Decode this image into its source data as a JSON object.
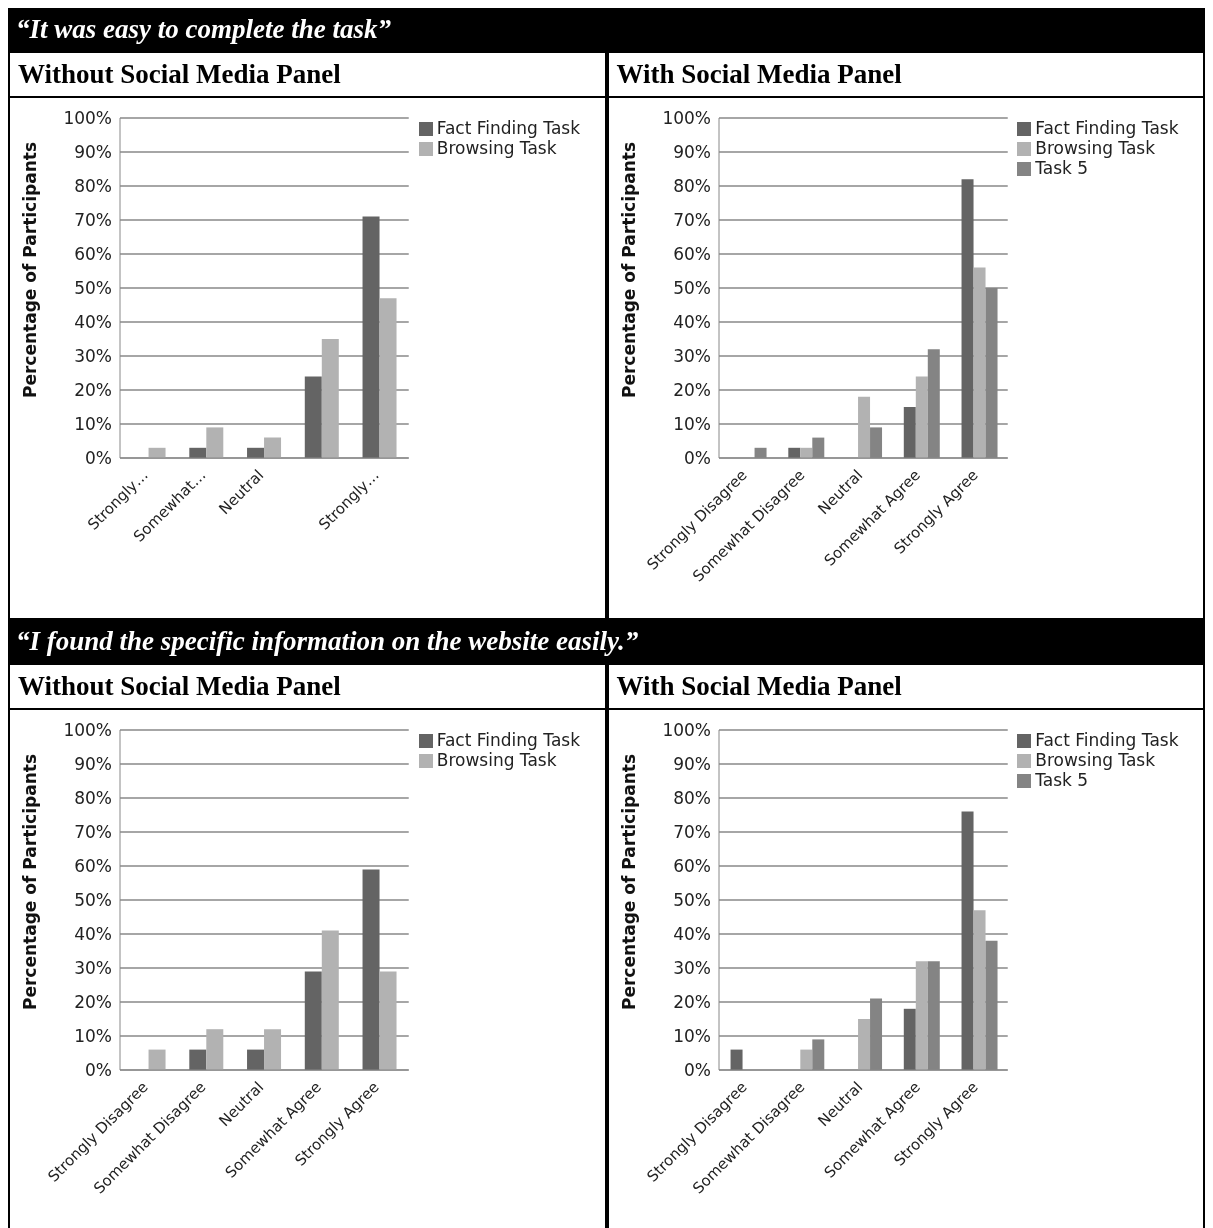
{
  "chart_data": [
    {
      "type": "bar",
      "title": "“It was easy to complete the task”",
      "subtitle": "Without Social Media Panel",
      "ylabel": "Percentage of Participants",
      "categories": [
        "Strongly…",
        "Somewhat…",
        "Neutral",
        null,
        "Strongly…"
      ],
      "series": [
        {
          "name": "Fact Finding Task",
          "color": "#646464",
          "values": [
            0,
            3,
            3,
            24,
            71
          ]
        },
        {
          "name": "Browsing Task",
          "color": "#b2b2b2",
          "values": [
            3,
            9,
            6,
            35,
            47
          ]
        }
      ],
      "ylim": [
        0,
        100
      ],
      "yticks": [
        {
          "value": 0,
          "label": "0%"
        },
        {
          "value": 10,
          "label": "10%"
        },
        {
          "value": 20,
          "label": "20%"
        },
        {
          "value": 30,
          "label": "30%"
        },
        {
          "value": 40,
          "label": "40%"
        },
        {
          "value": 50,
          "label": "50%"
        },
        {
          "value": 60,
          "label": "60%"
        },
        {
          "value": 70,
          "label": "70%"
        },
        {
          "value": 80,
          "label": "80%"
        },
        {
          "value": 90,
          "label": "90%"
        },
        {
          "value": 100,
          "label": "100%"
        }
      ],
      "grid": "y",
      "legend": "top right"
    },
    {
      "type": "bar",
      "subtitle": "With Social Media Panel",
      "ylabel": "Percentage of Participants",
      "categories": [
        "Strongly Disagree",
        "Somewhat Disagree",
        "Neutral",
        "Somewhat Agree",
        "Strongly Agree"
      ],
      "series": [
        {
          "name": "Fact Finding Task",
          "color": "#646464",
          "values": [
            0,
            3,
            0,
            15,
            82
          ]
        },
        {
          "name": "Browsing Task",
          "color": "#b2b2b2",
          "values": [
            0,
            3,
            18,
            24,
            56
          ]
        },
        {
          "name": "Task 5",
          "color": "#848484",
          "values": [
            3,
            6,
            9,
            32,
            50
          ]
        }
      ],
      "ylim": [
        0,
        100
      ],
      "yticks": [
        {
          "value": 0,
          "label": "0%"
        },
        {
          "value": 10,
          "label": "10%"
        },
        {
          "value": 20,
          "label": "20%"
        },
        {
          "value": 30,
          "label": "30%"
        },
        {
          "value": 40,
          "label": "40%"
        },
        {
          "value": 50,
          "label": "50%"
        },
        {
          "value": 60,
          "label": "60%"
        },
        {
          "value": 70,
          "label": "70%"
        },
        {
          "value": 80,
          "label": "80%"
        },
        {
          "value": 90,
          "label": "90%"
        },
        {
          "value": 100,
          "label": "100%"
        }
      ],
      "grid": "y",
      "legend": "top right"
    },
    {
      "type": "bar",
      "title": "“I found the specific information on the website easily.”",
      "subtitle": "Without Social Media Panel",
      "ylabel": "Percentage of Participants",
      "categories": [
        "Strongly Disagree",
        "Somewhat Disagree",
        "Neutral",
        "Somewhat Agree",
        "Strongly Agree"
      ],
      "series": [
        {
          "name": "Fact Finding Task",
          "color": "#646464",
          "values": [
            0,
            6,
            6,
            29,
            59
          ]
        },
        {
          "name": "Browsing Task",
          "color": "#b2b2b2",
          "values": [
            6,
            12,
            12,
            41,
            29
          ]
        }
      ],
      "ylim": [
        0,
        100
      ],
      "yticks": [
        {
          "value": 0,
          "label": "0%"
        },
        {
          "value": 10,
          "label": "10%"
        },
        {
          "value": 20,
          "label": "20%"
        },
        {
          "value": 30,
          "label": "30%"
        },
        {
          "value": 40,
          "label": "40%"
        },
        {
          "value": 50,
          "label": "50%"
        },
        {
          "value": 60,
          "label": "60%"
        },
        {
          "value": 70,
          "label": "70%"
        },
        {
          "value": 80,
          "label": "80%"
        },
        {
          "value": 90,
          "label": "90%"
        },
        {
          "value": 100,
          "label": "100%"
        }
      ],
      "grid": "y",
      "legend": "top right"
    },
    {
      "type": "bar",
      "subtitle": "With Social Media Panel",
      "ylabel": "Percentage of Participants",
      "categories": [
        "Strongly Disagree",
        "Somewhat Disagree",
        "Neutral",
        "Somewhat Agree",
        "Strongly Agree"
      ],
      "series": [
        {
          "name": "Fact Finding Task",
          "color": "#646464",
          "values": [
            6,
            0,
            0,
            18,
            76
          ]
        },
        {
          "name": "Browsing Task",
          "color": "#b2b2b2",
          "values": [
            0,
            6,
            15,
            32,
            47
          ]
        },
        {
          "name": "Task 5",
          "color": "#848484",
          "values": [
            0,
            9,
            21,
            32,
            38
          ]
        }
      ],
      "ylim": [
        0,
        100
      ],
      "yticks": [
        {
          "value": 0,
          "label": "0%"
        },
        {
          "value": 10,
          "label": "10%"
        },
        {
          "value": 20,
          "label": "20%"
        },
        {
          "value": 30,
          "label": "30%"
        },
        {
          "value": 40,
          "label": "40%"
        },
        {
          "value": 50,
          "label": "50%"
        },
        {
          "value": 60,
          "label": "60%"
        },
        {
          "value": 70,
          "label": "70%"
        },
        {
          "value": 80,
          "label": "80%"
        },
        {
          "value": 90,
          "label": "90%"
        },
        {
          "value": 100,
          "label": "100%"
        }
      ],
      "grid": "y",
      "legend": "top right"
    }
  ]
}
